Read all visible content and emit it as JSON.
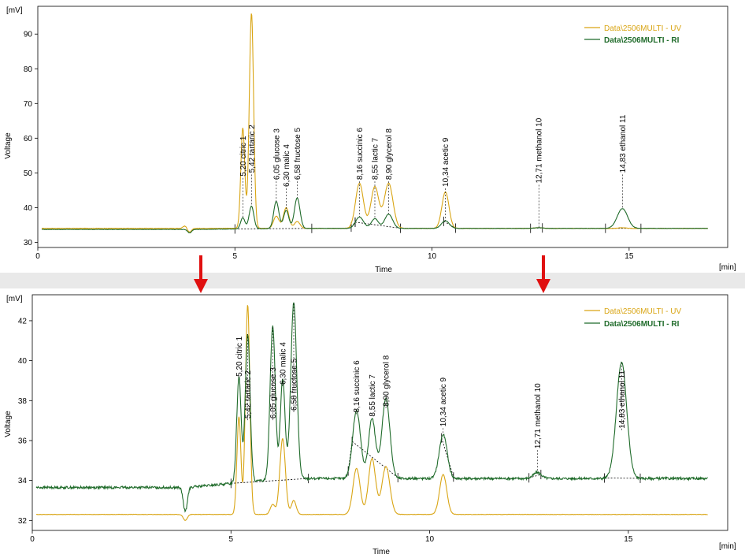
{
  "colors": {
    "uv": "#d9a514",
    "ri": "#1f6b2a",
    "arrow": "#e01010",
    "baseline": "#000000"
  },
  "chart_data": [
    {
      "type": "line",
      "unit_label": "[mV]",
      "xlabel": "Time",
      "xunit": "[min]",
      "ylabel": "Voltage",
      "xlim": [
        0,
        17.5
      ],
      "ylim": [
        28.5,
        98
      ],
      "xticks": [
        0,
        5,
        10,
        15
      ],
      "yticks": [
        30,
        40,
        50,
        60,
        70,
        80,
        90
      ],
      "grid": false,
      "legend": "top-right",
      "legend_entries": [
        {
          "key": "uv",
          "label": "Data\\2506MULTI - UV"
        },
        {
          "key": "ri",
          "label": "Data\\2506MULTI - RI"
        }
      ],
      "series": [
        {
          "key": "uv",
          "name": "Data\\2506MULTI - UV",
          "baseline": 34.0,
          "t_start": 0.1,
          "t_end": 17.0,
          "noise": 0.06,
          "dip": {
            "t": 3.85,
            "h": -1.1,
            "w": 0.05,
            "pre_h": 0.7
          },
          "peaks": [
            [
              5.2,
              29,
              0.05
            ],
            [
              5.42,
              62,
              0.055
            ],
            [
              6.05,
              3.5,
              0.07
            ],
            [
              6.3,
              6,
              0.07
            ],
            [
              6.58,
              2,
              0.07
            ],
            [
              8.16,
              13,
              0.1
            ],
            [
              8.55,
              12,
              0.1
            ],
            [
              8.9,
              13,
              0.11
            ],
            [
              10.34,
              10.5,
              0.09
            ],
            [
              12.71,
              0.2,
              0.1
            ],
            [
              14.83,
              0.2,
              0.1
            ]
          ]
        },
        {
          "key": "ri",
          "name": "Data\\2506MULTI - RI",
          "baseline": 33.7,
          "t_start": 0.1,
          "t_end": 17.0,
          "noise": 0.05,
          "drift": 0.3,
          "dip": {
            "t": 3.85,
            "h": -1.0,
            "w": 0.05
          },
          "peaks": [
            [
              5.2,
              3.2,
              0.055
            ],
            [
              5.42,
              6.5,
              0.06
            ],
            [
              6.05,
              7.8,
              0.065
            ],
            [
              6.3,
              5.2,
              0.065
            ],
            [
              6.58,
              8.8,
              0.07
            ],
            [
              8.16,
              3.3,
              0.1
            ],
            [
              8.55,
              2.8,
              0.09
            ],
            [
              8.9,
              4.1,
              0.1
            ],
            [
              10.34,
              2.2,
              0.1
            ],
            [
              12.71,
              0.2,
              0.1
            ],
            [
              14.83,
              5.7,
              0.13
            ]
          ]
        }
      ],
      "peak_labels": [
        {
          "text": "5,20 citric",
          "num": "1",
          "t": 5.2,
          "y": 49
        },
        {
          "text": "5,42 tartaric",
          "num": "2",
          "t": 5.42,
          "y": 50
        },
        {
          "text": "6,05 glucose",
          "num": "3",
          "t": 6.05,
          "y": 48
        },
        {
          "text": "6,30 malic",
          "num": "4",
          "t": 6.3,
          "y": 46
        },
        {
          "text": "6,58 fructose",
          "num": "5",
          "t": 6.58,
          "y": 48
        },
        {
          "text": "8,16 succinic",
          "num": "6",
          "t": 8.16,
          "y": 48
        },
        {
          "text": "8,55 lactic",
          "num": "7",
          "t": 8.55,
          "y": 48
        },
        {
          "text": "8,90 glycerol",
          "num": "8",
          "t": 8.9,
          "y": 48
        },
        {
          "text": "10,34 acetic",
          "num": "9",
          "t": 10.34,
          "y": 46
        },
        {
          "text": "12,71 methanol",
          "num": "10",
          "t": 12.71,
          "y": 47
        },
        {
          "text": "14,83 ethanol",
          "num": "11",
          "t": 14.83,
          "y": 50
        }
      ],
      "baseline_segments": [
        [
          5.0,
          6.95
        ],
        [
          7.95,
          8.05
        ],
        [
          8.05,
          9.2
        ],
        [
          10.3,
          10.6
        ],
        [
          12.5,
          12.8
        ],
        [
          14.4,
          15.3
        ]
      ]
    },
    {
      "type": "line",
      "unit_label": "[mV]",
      "xlabel": "Time",
      "xunit": "[min]",
      "ylabel": "Voltage",
      "xlim": [
        0,
        17.5
      ],
      "ylim": [
        31.5,
        43.3
      ],
      "xticks": [
        0,
        5,
        10,
        15
      ],
      "yticks": [
        32,
        34,
        36,
        38,
        40,
        42
      ],
      "grid": false,
      "legend": "top-right",
      "legend_entries": [
        {
          "key": "uv",
          "label": "Data\\2506MULTI - UV"
        },
        {
          "key": "ri",
          "label": "Data\\2506MULTI - RI"
        }
      ],
      "series": [
        {
          "key": "uv",
          "name": "Data\\2506MULTI - UV",
          "baseline": 32.3,
          "t_start": 0.1,
          "t_end": 17.0,
          "noise": 0.01,
          "dip": {
            "t": 3.85,
            "h": -0.3,
            "w": 0.05
          },
          "peaks": [
            [
              5.2,
              4.9,
              0.05
            ],
            [
              5.42,
              10.5,
              0.055
            ],
            [
              6.05,
              0.5,
              0.06
            ],
            [
              6.3,
              3.8,
              0.07
            ],
            [
              6.58,
              0.7,
              0.06
            ],
            [
              8.16,
              2.3,
              0.09
            ],
            [
              8.55,
              2.8,
              0.09
            ],
            [
              8.9,
              2.4,
              0.1
            ],
            [
              10.34,
              2.0,
              0.09
            ]
          ]
        },
        {
          "key": "ri",
          "name": "Data\\2506MULTI - RI",
          "baseline": 33.65,
          "t_start": 0.1,
          "t_end": 17.0,
          "noise": 0.06,
          "drift": 0.45,
          "dip": {
            "t": 3.85,
            "h": -1.2,
            "w": 0.05
          },
          "peaks": [
            [
              5.2,
              5.3,
              0.055
            ],
            [
              5.42,
              7.4,
              0.06
            ],
            [
              6.05,
              7.7,
              0.065
            ],
            [
              6.3,
              5.0,
              0.06
            ],
            [
              6.58,
              8.8,
              0.075
            ],
            [
              8.16,
              3.4,
              0.1
            ],
            [
              8.55,
              3.0,
              0.09
            ],
            [
              8.9,
              4.0,
              0.1
            ],
            [
              10.34,
              2.2,
              0.1
            ],
            [
              12.71,
              0.3,
              0.1
            ],
            [
              14.83,
              5.8,
              0.13
            ]
          ]
        }
      ],
      "peak_labels": [
        {
          "text": "5,20 citric",
          "num": "1",
          "t": 5.2,
          "y": 39.2
        },
        {
          "text": "5,42 tartaric",
          "num": "2",
          "t": 5.42,
          "y": 37.1
        },
        {
          "text": "6,05 glucose",
          "num": "3",
          "t": 6.05,
          "y": 37.1
        },
        {
          "text": "6,30 malic",
          "num": "4",
          "t": 6.3,
          "y": 38.8
        },
        {
          "text": "6,58 fructose",
          "num": "5",
          "t": 6.58,
          "y": 37.5
        },
        {
          "text": "8,16 succinic",
          "num": "6",
          "t": 8.16,
          "y": 37.4
        },
        {
          "text": "8,55 lactic",
          "num": "7",
          "t": 8.55,
          "y": 37.2
        },
        {
          "text": "8,90 glycerol",
          "num": "8",
          "t": 8.9,
          "y": 37.7
        },
        {
          "text": "10,34 acetic",
          "num": "9",
          "t": 10.34,
          "y": 36.7
        },
        {
          "text": "12,71 methanol",
          "num": "10",
          "t": 12.71,
          "y": 35.6
        },
        {
          "text": "14,83 ethanol",
          "num": "11",
          "t": 14.83,
          "y": 36.6
        }
      ],
      "baseline_segments": [
        [
          5.0,
          6.95
        ],
        [
          7.95,
          8.05
        ],
        [
          8.05,
          9.2
        ],
        [
          10.3,
          10.6
        ],
        [
          12.5,
          12.8
        ],
        [
          14.4,
          15.3
        ]
      ]
    }
  ],
  "arrows": [
    {
      "label": "zoom-arrow-left"
    },
    {
      "label": "zoom-arrow-right"
    }
  ]
}
